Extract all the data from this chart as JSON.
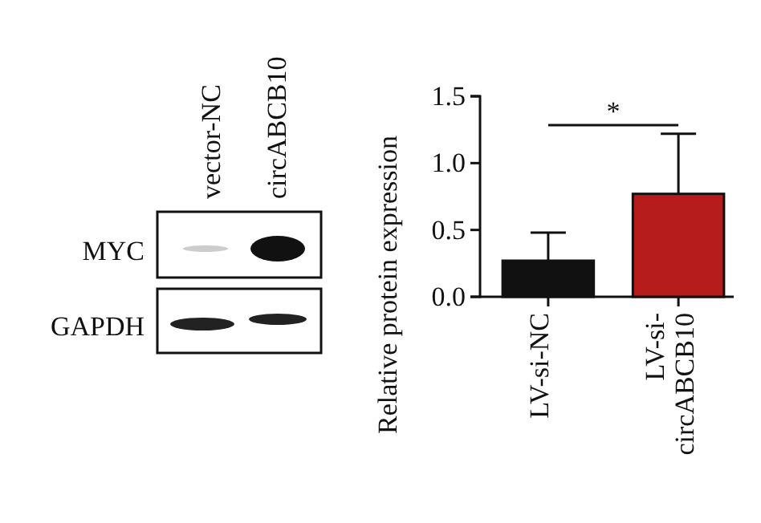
{
  "chart_data": [
    {
      "type": "other",
      "annotations": [
        "vector-NC",
        "circABCB10",
        "MYC",
        "GAPDH"
      ]
    },
    {
      "type": "bar",
      "ylabel": "Relative protein expression",
      "categories": [
        "LV-si-NC",
        "LV-si-\ncircABCB10"
      ],
      "values": [
        0.27,
        0.77
      ],
      "colors": [
        "#111111",
        "#b71c1c"
      ],
      "errors": [
        [
          0.27,
          0.48
        ],
        [
          0.77,
          1.22
        ]
      ],
      "ylim": [
        0,
        1.5
      ],
      "yticks": [
        {
          "value": 0,
          "label": "0.0"
        },
        {
          "value": 0.5,
          "label": "0.5"
        },
        {
          "value": 1,
          "label": "1.0"
        },
        {
          "value": 1.5,
          "label": "1.5"
        }
      ],
      "annotations": [
        "*"
      ]
    }
  ]
}
